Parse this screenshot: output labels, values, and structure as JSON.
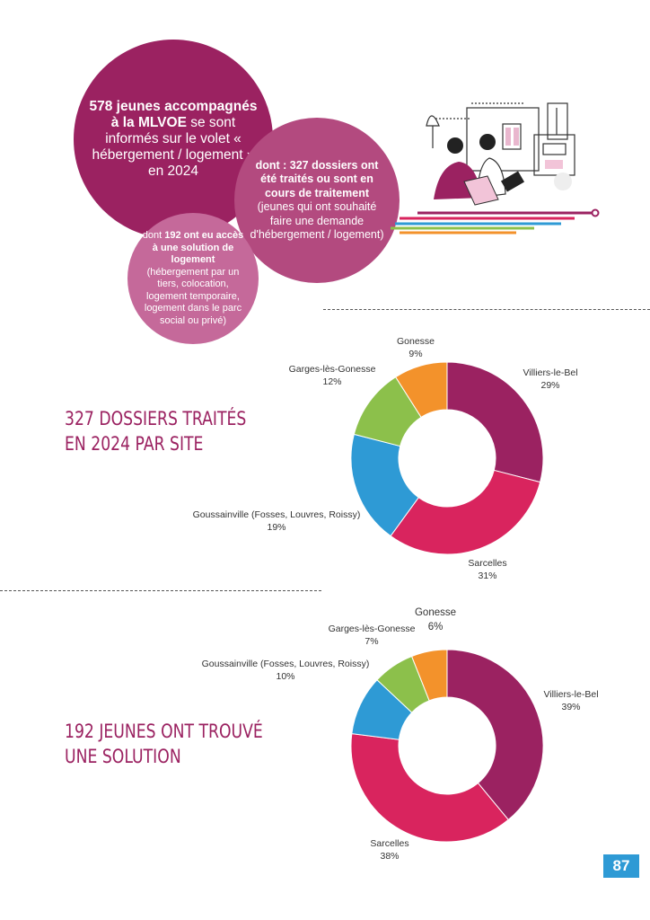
{
  "intro": {
    "circle_main": {
      "bold": "578 jeunes accompagnés à la MLVOE",
      "text": " se sont informés sur le volet « hébergement / logement » en 2024"
    },
    "circle_dossiers": {
      "bold": "dont : 327 dossiers ont été traités ou sont en cours de traitement",
      "text": " (jeunes qui ont souhaité faire une demande d'hébergement / logement)"
    },
    "circle_solution": {
      "pre": "dont ",
      "bold": "192 ont eu accès à une solution de logement",
      "text": " (hébergement par un tiers, colocation, logement temporaire, logement dans le parc social ou privé)"
    }
  },
  "colors": {
    "villiers": "#9b2261",
    "sarcelles": "#d9245e",
    "goussainville": "#2e9ad5",
    "garges": "#8cc04b",
    "gonesse": "#f3922b",
    "title": "#9b2261",
    "page_badge": "#2e9ad5"
  },
  "chart_data": [
    {
      "type": "pie",
      "title": "327 DOSSIERS TRAITÉS EN 2024 PAR SITE",
      "categories": [
        "Villiers-le-Bel",
        "Sarcelles",
        "Goussainville (Fosses, Louvres, Roissy)",
        "Garges-lès-Gonesse",
        "Gonesse"
      ],
      "values": [
        29,
        31,
        19,
        12,
        9
      ],
      "value_labels": [
        "29%",
        "31%",
        "19%",
        "12%",
        "9%"
      ],
      "style": "donut"
    },
    {
      "type": "pie",
      "title": "192 JEUNES ONT TROUVÉ UNE SOLUTION",
      "categories": [
        "Villiers-le-Bel",
        "Sarcelles",
        "Goussainville (Fosses, Louvres, Roissy)",
        "Garges-lès-Gonesse",
        "Gonesse"
      ],
      "values": [
        39,
        38,
        10,
        7,
        6
      ],
      "value_labels": [
        "39%",
        "38%",
        "10%",
        "7%",
        "6%"
      ],
      "style": "donut"
    }
  ],
  "titles": {
    "chart1_line1": "327 DOSSIERS TRAITÉS",
    "chart1_line2": "EN 2024 PAR SITE",
    "chart2_line1": "192 JEUNES ONT TROUVÉ",
    "chart2_line2": "UNE SOLUTION"
  },
  "page_number": "87"
}
